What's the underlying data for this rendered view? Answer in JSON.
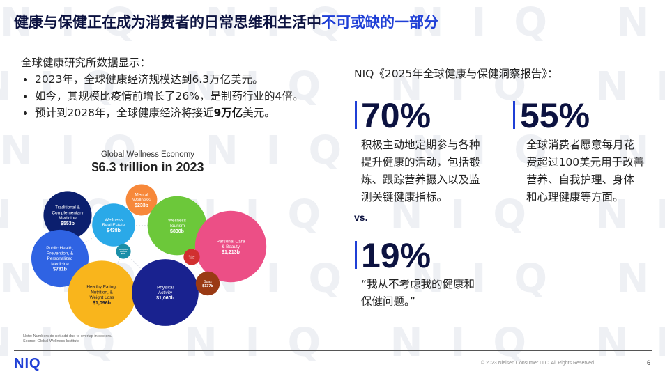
{
  "watermark_text": "NIQ",
  "title": {
    "main": "健康与保健正在成为消费者的日常思维和生活中",
    "accent": "不可或缺的一部分"
  },
  "intro": {
    "lead": "全球健康研究所数据显示：",
    "bullets": [
      {
        "text": "2023年，全球健康经济规模达到6.3万亿美元。"
      },
      {
        "text": "如今，其规模比疫情前增长了26%，是制药行业的4倍。"
      },
      {
        "pre": "预计到2028年，全球健康经济将接近",
        "bold": "9万亿",
        "post": "美元。"
      }
    ]
  },
  "chart_data": {
    "type": "bubble",
    "title": "Global Wellness Economy",
    "subtitle": "$6.3 trillion in 2023",
    "units": "USD billions",
    "bubbles": [
      {
        "name": "Traditional & Complementary Medicine",
        "value": 553,
        "label": "$553b",
        "color": "#0b1f6e"
      },
      {
        "name": "Wellness Real Estate",
        "value": 438,
        "label": "$438b",
        "color": "#2aa9e8"
      },
      {
        "name": "Mental Wellness",
        "value": 233,
        "label": "$233b",
        "color": "#f7883a"
      },
      {
        "name": "Wellness Tourism",
        "value": 830,
        "label": "$830b",
        "color": "#6cc83a"
      },
      {
        "name": "Personal Care & Beauty",
        "value": 1213,
        "label": "$1,213b",
        "color": "#ec4f86"
      },
      {
        "name": "Public Health, Prevention, & Personalized Medicine",
        "value": 781,
        "label": "$781b",
        "color": "#2f63e3"
      },
      {
        "name": "Workplace Wellness",
        "value": 52,
        "label": "$52b",
        "color": "#1a8fa8"
      },
      {
        "name": "Springs",
        "value": 63,
        "label": "$63b",
        "color": "#d13030"
      },
      {
        "name": "Healthy Eating, Nutrition, & Weight Loss",
        "value": 1096,
        "label": "$1,096b",
        "color": "#f9b51c"
      },
      {
        "name": "Physical Activity",
        "value": 1060,
        "label": "$1,060b",
        "color": "#19228f"
      },
      {
        "name": "Spas",
        "value": 137,
        "label": "$137b",
        "color": "#9a3a14"
      }
    ],
    "note": "Note: Numbers do not add due to overlap in sectors.",
    "source": "Source: Global Wellness Institute"
  },
  "report_label": "NIQ《2025年全球健康与保健洞察报告》：",
  "stats": [
    {
      "value": "70%",
      "lines": [
        "积极主动地定期参与各种",
        "提升健康的活动，包括锻",
        "炼、跟踪营养摄入以及监",
        "测关键健康指标。"
      ]
    },
    {
      "value": "55%",
      "lines": [
        "全球消费者愿意每月花",
        "费超过100美元用于改善",
        "营养、自我护理、身体",
        "和心理健康等方面。"
      ]
    },
    {
      "value": "19%",
      "lines": [
        "“我从不考虑我的健康和",
        "保健问题。”"
      ]
    }
  ],
  "vs_label": "vs.",
  "footer": {
    "logo": "NIQ",
    "copyright": "© 2023 Nielsen Consumer LLC. All Rights Reserved.",
    "page": "6"
  }
}
